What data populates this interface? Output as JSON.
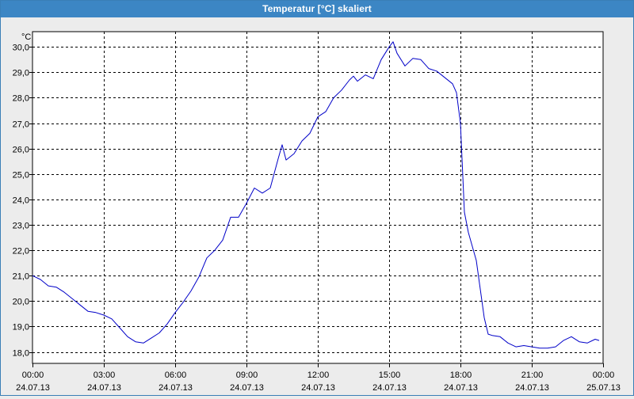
{
  "window": {
    "title": "Temperatur [°C] skaliert"
  },
  "colors": {
    "title_bar": "#3c86c4",
    "background": "#ececec",
    "plot_background": "#ffffff",
    "line": "#0000c8",
    "grid": "#000000"
  },
  "chart_data": {
    "type": "line",
    "title": "Temperatur [°C] skaliert",
    "ylabel": "°C",
    "xlabel": "",
    "ylim": [
      17.55,
      30.6
    ],
    "xlim_hours": [
      0,
      24
    ],
    "grid": true,
    "grid_style": "dashed",
    "y_ticks": [
      18.0,
      19.0,
      20.0,
      21.0,
      22.0,
      23.0,
      24.0,
      25.0,
      26.0,
      27.0,
      28.0,
      29.0,
      30.0
    ],
    "y_tick_labels": [
      "18,0",
      "19,0",
      "20,0",
      "21,0",
      "22,0",
      "23,0",
      "24,0",
      "25,0",
      "26,0",
      "27,0",
      "28,0",
      "29,0",
      "30,0"
    ],
    "x_ticks": [
      {
        "time": "00:00",
        "date": "24.07.13"
      },
      {
        "time": "03:00",
        "date": "24.07.13"
      },
      {
        "time": "06:00",
        "date": "24.07.13"
      },
      {
        "time": "09:00",
        "date": "24.07.13"
      },
      {
        "time": "12:00",
        "date": "24.07.13"
      },
      {
        "time": "15:00",
        "date": "24.07.13"
      },
      {
        "time": "18:00",
        "date": "24.07.13"
      },
      {
        "time": "21:00",
        "date": "24.07.13"
      },
      {
        "time": "00:00",
        "date": "25.07.13"
      }
    ],
    "series": [
      {
        "x": [
          "2013-07-24 00:00",
          "2013-07-24 00:20",
          "2013-07-24 00:40",
          "2013-07-24 01:00",
          "2013-07-24 01:20",
          "2013-07-24 01:40",
          "2013-07-24 02:00",
          "2013-07-24 02:20",
          "2013-07-24 02:40",
          "2013-07-24 03:00",
          "2013-07-24 03:20",
          "2013-07-24 03:40",
          "2013-07-24 04:00",
          "2013-07-24 04:20",
          "2013-07-24 04:40",
          "2013-07-24 05:00",
          "2013-07-24 05:20",
          "2013-07-24 05:40",
          "2013-07-24 06:00",
          "2013-07-24 06:20",
          "2013-07-24 06:40",
          "2013-07-24 07:00",
          "2013-07-24 07:20",
          "2013-07-24 07:40",
          "2013-07-24 08:00",
          "2013-07-24 08:20",
          "2013-07-24 08:40",
          "2013-07-24 09:00",
          "2013-07-24 09:20",
          "2013-07-24 09:40",
          "2013-07-24 10:00",
          "2013-07-24 10:20",
          "2013-07-24 10:30",
          "2013-07-24 10:40",
          "2013-07-24 11:00",
          "2013-07-24 11:20",
          "2013-07-24 11:40",
          "2013-07-24 12:00",
          "2013-07-24 12:20",
          "2013-07-24 12:40",
          "2013-07-24 13:00",
          "2013-07-24 13:20",
          "2013-07-24 13:30",
          "2013-07-24 13:40",
          "2013-07-24 14:00",
          "2013-07-24 14:20",
          "2013-07-24 14:40",
          "2013-07-24 15:00",
          "2013-07-24 15:10",
          "2013-07-24 15:20",
          "2013-07-24 15:40",
          "2013-07-24 16:00",
          "2013-07-24 16:20",
          "2013-07-24 16:40",
          "2013-07-24 17:00",
          "2013-07-24 17:20",
          "2013-07-24 17:40",
          "2013-07-24 17:50",
          "2013-07-24 18:00",
          "2013-07-24 18:10",
          "2013-07-24 18:20",
          "2013-07-24 18:40",
          "2013-07-24 19:00",
          "2013-07-24 19:10",
          "2013-07-24 19:20",
          "2013-07-24 19:40",
          "2013-07-24 20:00",
          "2013-07-24 20:20",
          "2013-07-24 20:40",
          "2013-07-24 21:00",
          "2013-07-24 21:20",
          "2013-07-24 21:40",
          "2013-07-24 22:00",
          "2013-07-24 22:20",
          "2013-07-24 22:40",
          "2013-07-24 23:00",
          "2013-07-24 23:20",
          "2013-07-24 23:40",
          "2013-07-24 23:50"
        ],
        "values": [
          21.0,
          20.85,
          20.6,
          20.55,
          20.35,
          20.1,
          19.85,
          19.6,
          19.55,
          19.45,
          19.3,
          18.95,
          18.6,
          18.4,
          18.35,
          18.55,
          18.75,
          19.1,
          19.55,
          19.95,
          20.4,
          20.95,
          21.7,
          22.0,
          22.4,
          23.3,
          23.3,
          23.85,
          24.45,
          24.25,
          24.45,
          25.6,
          26.15,
          25.55,
          25.8,
          26.3,
          26.6,
          27.25,
          27.45,
          28.0,
          28.3,
          28.7,
          28.85,
          28.65,
          28.9,
          28.75,
          29.5,
          30.0,
          30.2,
          29.75,
          29.25,
          29.55,
          29.5,
          29.15,
          29.05,
          28.8,
          28.55,
          28.2,
          27.0,
          23.5,
          22.7,
          21.6,
          19.35,
          18.7,
          18.65,
          18.6,
          18.35,
          18.2,
          18.25,
          18.2,
          18.15,
          18.15,
          18.2,
          18.45,
          18.6,
          18.4,
          18.35,
          18.5,
          18.45
        ]
      }
    ]
  }
}
